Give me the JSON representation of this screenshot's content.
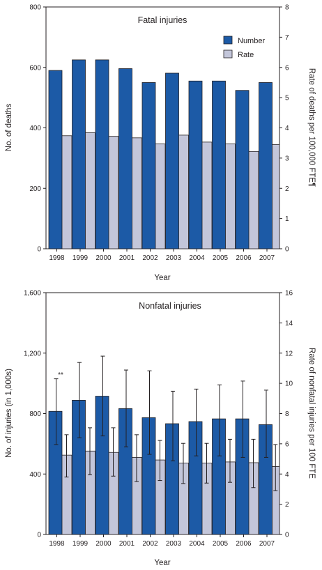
{
  "colors": {
    "number": "#1c5aa6",
    "rate": "#c3c6da",
    "outline": "#231f20"
  },
  "legend": {
    "number_label": "Number",
    "rate_label": "Rate"
  },
  "chart_data": [
    {
      "type": "bar",
      "title": "Fatal injuries",
      "xlabel": "Year",
      "ylabel": "No. of deaths",
      "ylabel_right": "Rate of deaths per 100,000 FTE¶",
      "categories": [
        "1998",
        "1999",
        "2000",
        "2001",
        "2002",
        "2003",
        "2004",
        "2005",
        "2006",
        "2007"
      ],
      "ylim": [
        0,
        800
      ],
      "y_ticks": [
        "0",
        "200",
        "400",
        "600",
        "800"
      ],
      "ylim_right": [
        0,
        8
      ],
      "y_ticks_right": [
        "0",
        "1",
        "2",
        "3",
        "4",
        "5",
        "6",
        "7",
        "8"
      ],
      "legend_position": "top-right",
      "grid": false,
      "series": [
        {
          "name": "Number",
          "axis": "left",
          "values": [
            590,
            625,
            625,
            596,
            550,
            581,
            555,
            555,
            524,
            550
          ]
        },
        {
          "name": "Rate",
          "axis": "right",
          "values": [
            3.74,
            3.84,
            3.72,
            3.67,
            3.47,
            3.76,
            3.53,
            3.47,
            3.22,
            3.45
          ]
        }
      ]
    },
    {
      "type": "bar",
      "title": "Nonfatal injuries",
      "xlabel": "Year",
      "ylabel": "No. of injuries (in 1,000s)",
      "ylabel_right": "Rate of nonfatal injuries per 100 FTE",
      "categories": [
        "1998",
        "1999",
        "2000",
        "2001",
        "2002",
        "2003",
        "2004",
        "2005",
        "2006",
        "2007"
      ],
      "ylim": [
        0,
        1600
      ],
      "y_ticks": [
        "0",
        "400",
        "800",
        "1,200",
        "1,600"
      ],
      "ylim_right": [
        0,
        16
      ],
      "y_ticks_right": [
        "0",
        "2",
        "4",
        "6",
        "8",
        "10",
        "12",
        "14",
        "16"
      ],
      "annotation": "**",
      "grid": false,
      "series": [
        {
          "name": "Number",
          "axis": "left",
          "values": [
            815,
            888,
            915,
            833,
            773,
            733,
            747,
            765,
            765,
            727
          ],
          "ci_low": [
            595,
            640,
            652,
            580,
            530,
            487,
            520,
            520,
            510,
            510
          ],
          "ci_high": [
            1030,
            1138,
            1180,
            1088,
            1083,
            948,
            962,
            990,
            1015,
            955
          ]
        },
        {
          "name": "Rate",
          "axis": "right",
          "values": [
            5.25,
            5.52,
            5.43,
            5.1,
            4.93,
            4.73,
            4.73,
            4.8,
            4.75,
            4.5
          ],
          "ci_low": [
            3.8,
            3.95,
            3.86,
            3.5,
            3.57,
            3.37,
            3.4,
            3.45,
            3.1,
            2.9
          ],
          "ci_high": [
            6.6,
            7.06,
            7.06,
            6.6,
            6.22,
            6.03,
            6.03,
            6.3,
            6.3,
            5.95
          ]
        }
      ]
    }
  ]
}
